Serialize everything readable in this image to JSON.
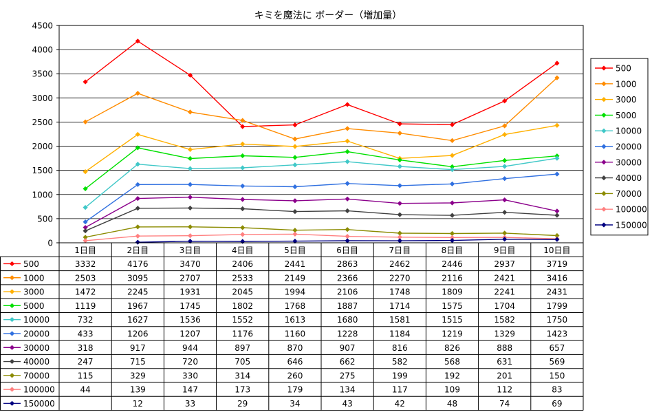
{
  "chart_data": {
    "type": "line",
    "title": "キミを魔法に ボーダー（増加量）",
    "categories": [
      "1日目",
      "2日目",
      "3日目",
      "4日目",
      "5日目",
      "6日目",
      "7日目",
      "8日目",
      "9日目",
      "10日目"
    ],
    "ylim": [
      0,
      4500
    ],
    "yticks": [
      0,
      500,
      1000,
      1500,
      2000,
      2500,
      3000,
      3500,
      4000,
      4500
    ],
    "grid": true,
    "legend_position": "right",
    "series": [
      {
        "name": "500",
        "color": "#ff0000",
        "values": [
          3332,
          4176,
          3470,
          2406,
          2441,
          2863,
          2462,
          2446,
          2937,
          3719
        ]
      },
      {
        "name": "1000",
        "color": "#ff8c00",
        "values": [
          2503,
          3095,
          2707,
          2533,
          2149,
          2366,
          2270,
          2116,
          2421,
          3416
        ]
      },
      {
        "name": "3000",
        "color": "#ffb000",
        "values": [
          1472,
          2245,
          1931,
          2045,
          1994,
          2106,
          1748,
          1809,
          2241,
          2431
        ]
      },
      {
        "name": "5000",
        "color": "#00e000",
        "values": [
          1119,
          1967,
          1745,
          1802,
          1768,
          1887,
          1714,
          1575,
          1704,
          1799
        ]
      },
      {
        "name": "10000",
        "color": "#40c8c8",
        "values": [
          732,
          1627,
          1536,
          1552,
          1613,
          1680,
          1581,
          1515,
          1582,
          1750
        ]
      },
      {
        "name": "20000",
        "color": "#3070e0",
        "values": [
          433,
          1206,
          1207,
          1176,
          1160,
          1228,
          1184,
          1219,
          1329,
          1423
        ]
      },
      {
        "name": "30000",
        "color": "#8b008b",
        "values": [
          318,
          917,
          944,
          897,
          870,
          907,
          816,
          826,
          888,
          657
        ]
      },
      {
        "name": "40000",
        "color": "#404040",
        "values": [
          247,
          715,
          720,
          705,
          646,
          662,
          582,
          568,
          631,
          569
        ]
      },
      {
        "name": "70000",
        "color": "#8b8b00",
        "values": [
          115,
          329,
          330,
          314,
          260,
          275,
          199,
          192,
          201,
          150
        ]
      },
      {
        "name": "100000",
        "color": "#ff8080",
        "values": [
          44,
          139,
          147,
          173,
          179,
          134,
          117,
          109,
          112,
          83
        ]
      },
      {
        "name": "150000",
        "color": "#000080",
        "values": [
          null,
          12,
          33,
          29,
          34,
          43,
          42,
          48,
          74,
          69
        ]
      }
    ]
  }
}
